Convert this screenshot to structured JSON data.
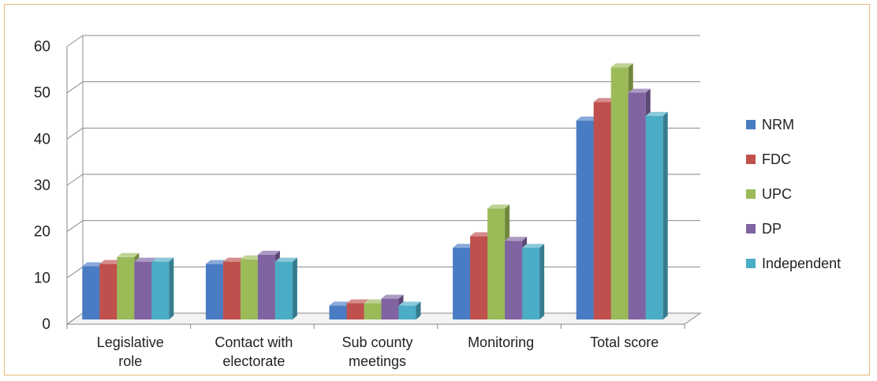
{
  "chart_data": {
    "type": "bar",
    "title": "",
    "xlabel": "",
    "ylabel": "",
    "ylim": [
      0,
      60
    ],
    "yticks": [
      "0",
      "10",
      "20",
      "30",
      "40",
      "50",
      "60"
    ],
    "grid": true,
    "legend_position": "right",
    "categories": [
      [
        "Legislative",
        "role"
      ],
      [
        "Contact with",
        "electorate"
      ],
      [
        "Sub county",
        "meetings"
      ],
      [
        "Monitoring"
      ],
      [
        "Total score"
      ]
    ],
    "series": [
      {
        "name": "NRM",
        "color": "#4a7cc4",
        "values": [
          11.5,
          12,
          3,
          15.5,
          43
        ]
      },
      {
        "name": "FDC",
        "color": "#c0504d",
        "values": [
          12,
          12.5,
          3.5,
          18,
          47
        ]
      },
      {
        "name": "UPC",
        "color": "#9bbb59",
        "values": [
          13.5,
          13,
          3.5,
          24,
          54.5
        ]
      },
      {
        "name": "DP",
        "color": "#8064a2",
        "values": [
          12.5,
          14,
          4.5,
          17,
          49
        ]
      },
      {
        "name": "Independent",
        "color": "#4bacc6",
        "values": [
          12.5,
          12.5,
          3,
          15.5,
          44
        ]
      }
    ]
  }
}
